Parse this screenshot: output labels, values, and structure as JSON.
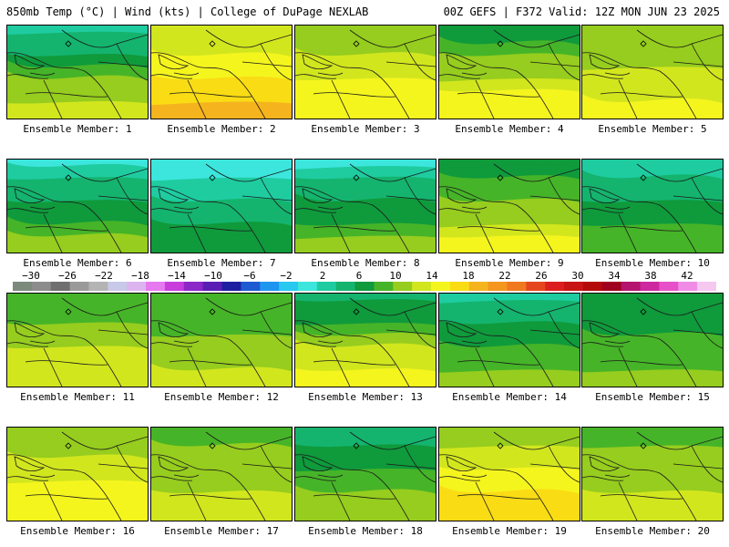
{
  "header": {
    "left": "850mb Temp (°C) | Wind (kts) | College of DuPage NEXLAB",
    "right": "00Z GEFS | F372 Valid: 12Z MON JUN 23 2025"
  },
  "members": [
    {
      "label": "Ensemble Member: 1",
      "base": 8,
      "grad": 10
    },
    {
      "label": "Ensemble Member: 2",
      "base": 15,
      "grad": 6
    },
    {
      "label": "Ensemble Member: 3",
      "base": 13,
      "grad": 5
    },
    {
      "label": "Ensemble Member: 4",
      "base": 11,
      "grad": 9
    },
    {
      "label": "Ensemble Member: 5",
      "base": 12,
      "grad": 4
    },
    {
      "label": "Ensemble Member: 6",
      "base": 6,
      "grad": 9
    },
    {
      "label": "Ensemble Member: 7",
      "base": 4,
      "grad": 6
    },
    {
      "label": "Ensemble Member: 8",
      "base": 6,
      "grad": 9
    },
    {
      "label": "Ensemble Member: 9",
      "base": 10,
      "grad": 8
    },
    {
      "label": "Ensemble Member: 10",
      "base": 6,
      "grad": 6
    },
    {
      "label": "Ensemble Member: 11",
      "base": 11,
      "grad": 5
    },
    {
      "label": "Ensemble Member: 12",
      "base": 10,
      "grad": 4
    },
    {
      "label": "Ensemble Member: 13",
      "base": 10,
      "grad": 10
    },
    {
      "label": "Ensemble Member: 14",
      "base": 7,
      "grad": 8
    },
    {
      "label": "Ensemble Member: 15",
      "base": 8,
      "grad": 4
    },
    {
      "label": "Ensemble Member: 16",
      "base": 13,
      "grad": 5
    },
    {
      "label": "Ensemble Member: 17",
      "base": 11,
      "grad": 4
    },
    {
      "label": "Ensemble Member: 18",
      "base": 8,
      "grad": 6
    },
    {
      "label": "Ensemble Member: 19",
      "base": 14,
      "grad": 6
    },
    {
      "label": "Ensemble Member: 20",
      "base": 11,
      "grad": 4
    }
  ],
  "colorbar": {
    "ticks": [
      "−30",
      "−26",
      "−22",
      "−18",
      "−14",
      "−10",
      "−6",
      "−2",
      "2",
      "6",
      "10",
      "14",
      "18",
      "22",
      "26",
      "30",
      "34",
      "38",
      "42"
    ],
    "colors": [
      "#7b8a7b",
      "#8c8c8c",
      "#6f6f6f",
      "#9a9a9a",
      "#b4b4b4",
      "#c8c8e8",
      "#dcb4f0",
      "#e678f0",
      "#c83cdc",
      "#8c28c8",
      "#5a1eb4",
      "#1e1ea0",
      "#1e5ad2",
      "#1e96f0",
      "#28c8f0",
      "#3ce6dc",
      "#1ecca0",
      "#14b46e",
      "#0f9a3c",
      "#46b428",
      "#96cd1e",
      "#d2e61e",
      "#f5f51e",
      "#fadc14",
      "#f5b41e",
      "#f5961e",
      "#f0781e",
      "#e6461e",
      "#dc1e1e",
      "#c81414",
      "#b40a0a",
      "#a0001e",
      "#b4146e",
      "#cd28a0",
      "#e650c8",
      "#f08ce6",
      "#f5c8f0"
    ]
  }
}
